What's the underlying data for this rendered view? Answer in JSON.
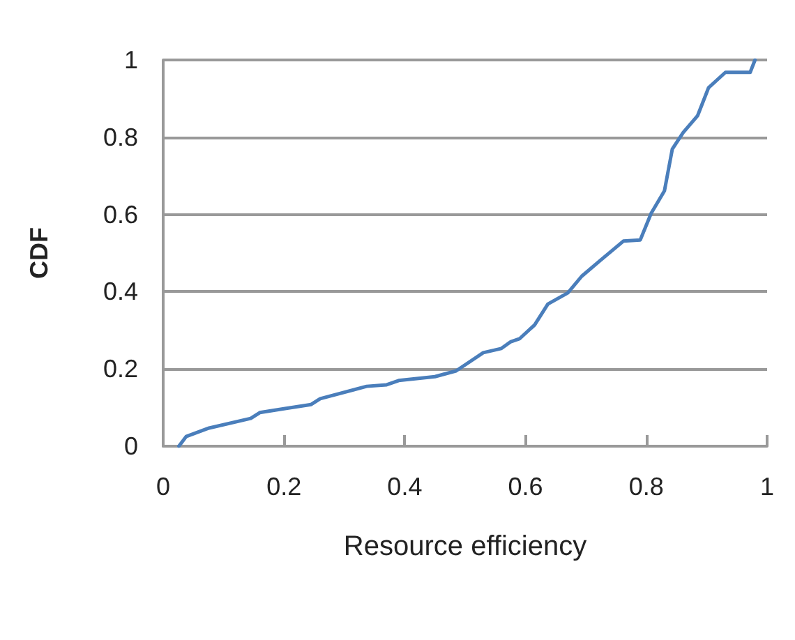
{
  "chart_data": {
    "type": "line",
    "xlabel": "Resource efficiency",
    "ylabel": "CDF",
    "series": [
      {
        "color": "#4a7ebb",
        "x": [
          0.026,
          0.038,
          0.076,
          0.145,
          0.16,
          0.2,
          0.245,
          0.26,
          0.337,
          0.37,
          0.39,
          0.45,
          0.485,
          0.53,
          0.56,
          0.575,
          0.59,
          0.615,
          0.637,
          0.67,
          0.693,
          0.723,
          0.762,
          0.79,
          0.808,
          0.83,
          0.843,
          0.861,
          0.885,
          0.903,
          0.931,
          0.972,
          0.98
        ],
        "values": [
          0,
          0.025,
          0.047,
          0.072,
          0.087,
          0.097,
          0.108,
          0.123,
          0.155,
          0.159,
          0.17,
          0.18,
          0.195,
          0.242,
          0.253,
          0.27,
          0.278,
          0.314,
          0.368,
          0.397,
          0.44,
          0.48,
          0.531,
          0.534,
          0.603,
          0.661,
          0.769,
          0.812,
          0.856,
          0.928,
          0.968,
          0.968,
          1
        ]
      }
    ],
    "xlim": [
      0,
      1
    ],
    "xticks": [
      0,
      0.2,
      0.4,
      0.6,
      0.8,
      1
    ],
    "ylim": [
      0,
      1
    ],
    "yticks": [
      0,
      0.2,
      0.4,
      0.6,
      0.8,
      1
    ],
    "grid": "y",
    "marker": "none",
    "line_style": "solid"
  }
}
